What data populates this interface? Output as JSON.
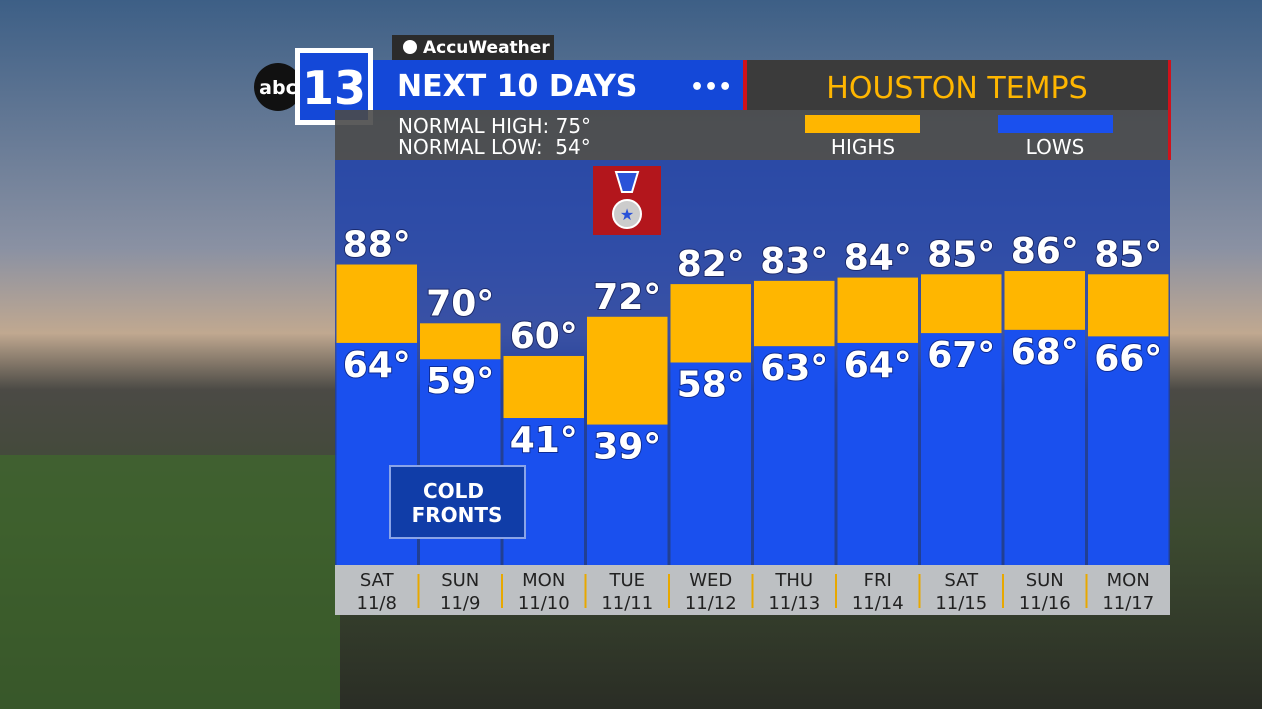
{
  "brand": {
    "provider": "AccuWeather",
    "network": "abc",
    "channel": "13"
  },
  "header": {
    "title": "NEXT 10 DAYS",
    "dots": "•••",
    "subtitle": "HOUSTON TEMPS",
    "normal_high": "NORMAL HIGH: 75°",
    "normal_low": "NORMAL LOW:  54°"
  },
  "annotation": "COLD FRONTS",
  "chart_data": {
    "type": "floating-bar",
    "categories": [
      "SAT",
      "SUN",
      "MON",
      "TUE",
      "WED",
      "THU",
      "FRI",
      "SAT",
      "SUN",
      "MON"
    ],
    "dates": [
      "11/8",
      "11/9",
      "11/10",
      "11/11",
      "11/12",
      "11/13",
      "11/14",
      "11/15",
      "11/16",
      "11/17"
    ],
    "series": [
      {
        "name": "HIGHS",
        "color": "#ffb600",
        "values": [
          88,
          70,
          60,
          72,
          82,
          83,
          84,
          85,
          86,
          85
        ],
        "value_labels": [
          "88°",
          "70°",
          "60°",
          "72°",
          "82°",
          "83°",
          "84°",
          "85°",
          "86°",
          "85°"
        ]
      },
      {
        "name": "LOWS",
        "color": "#1a50ee",
        "values": [
          64,
          59,
          41,
          39,
          58,
          63,
          64,
          67,
          68,
          66
        ],
        "value_labels": [
          "64°",
          "59°",
          "41°",
          "39°",
          "58°",
          "63°",
          "64°",
          "67°",
          "68°",
          "66°"
        ]
      }
    ],
    "ylim": [
      -4,
      120
    ]
  }
}
